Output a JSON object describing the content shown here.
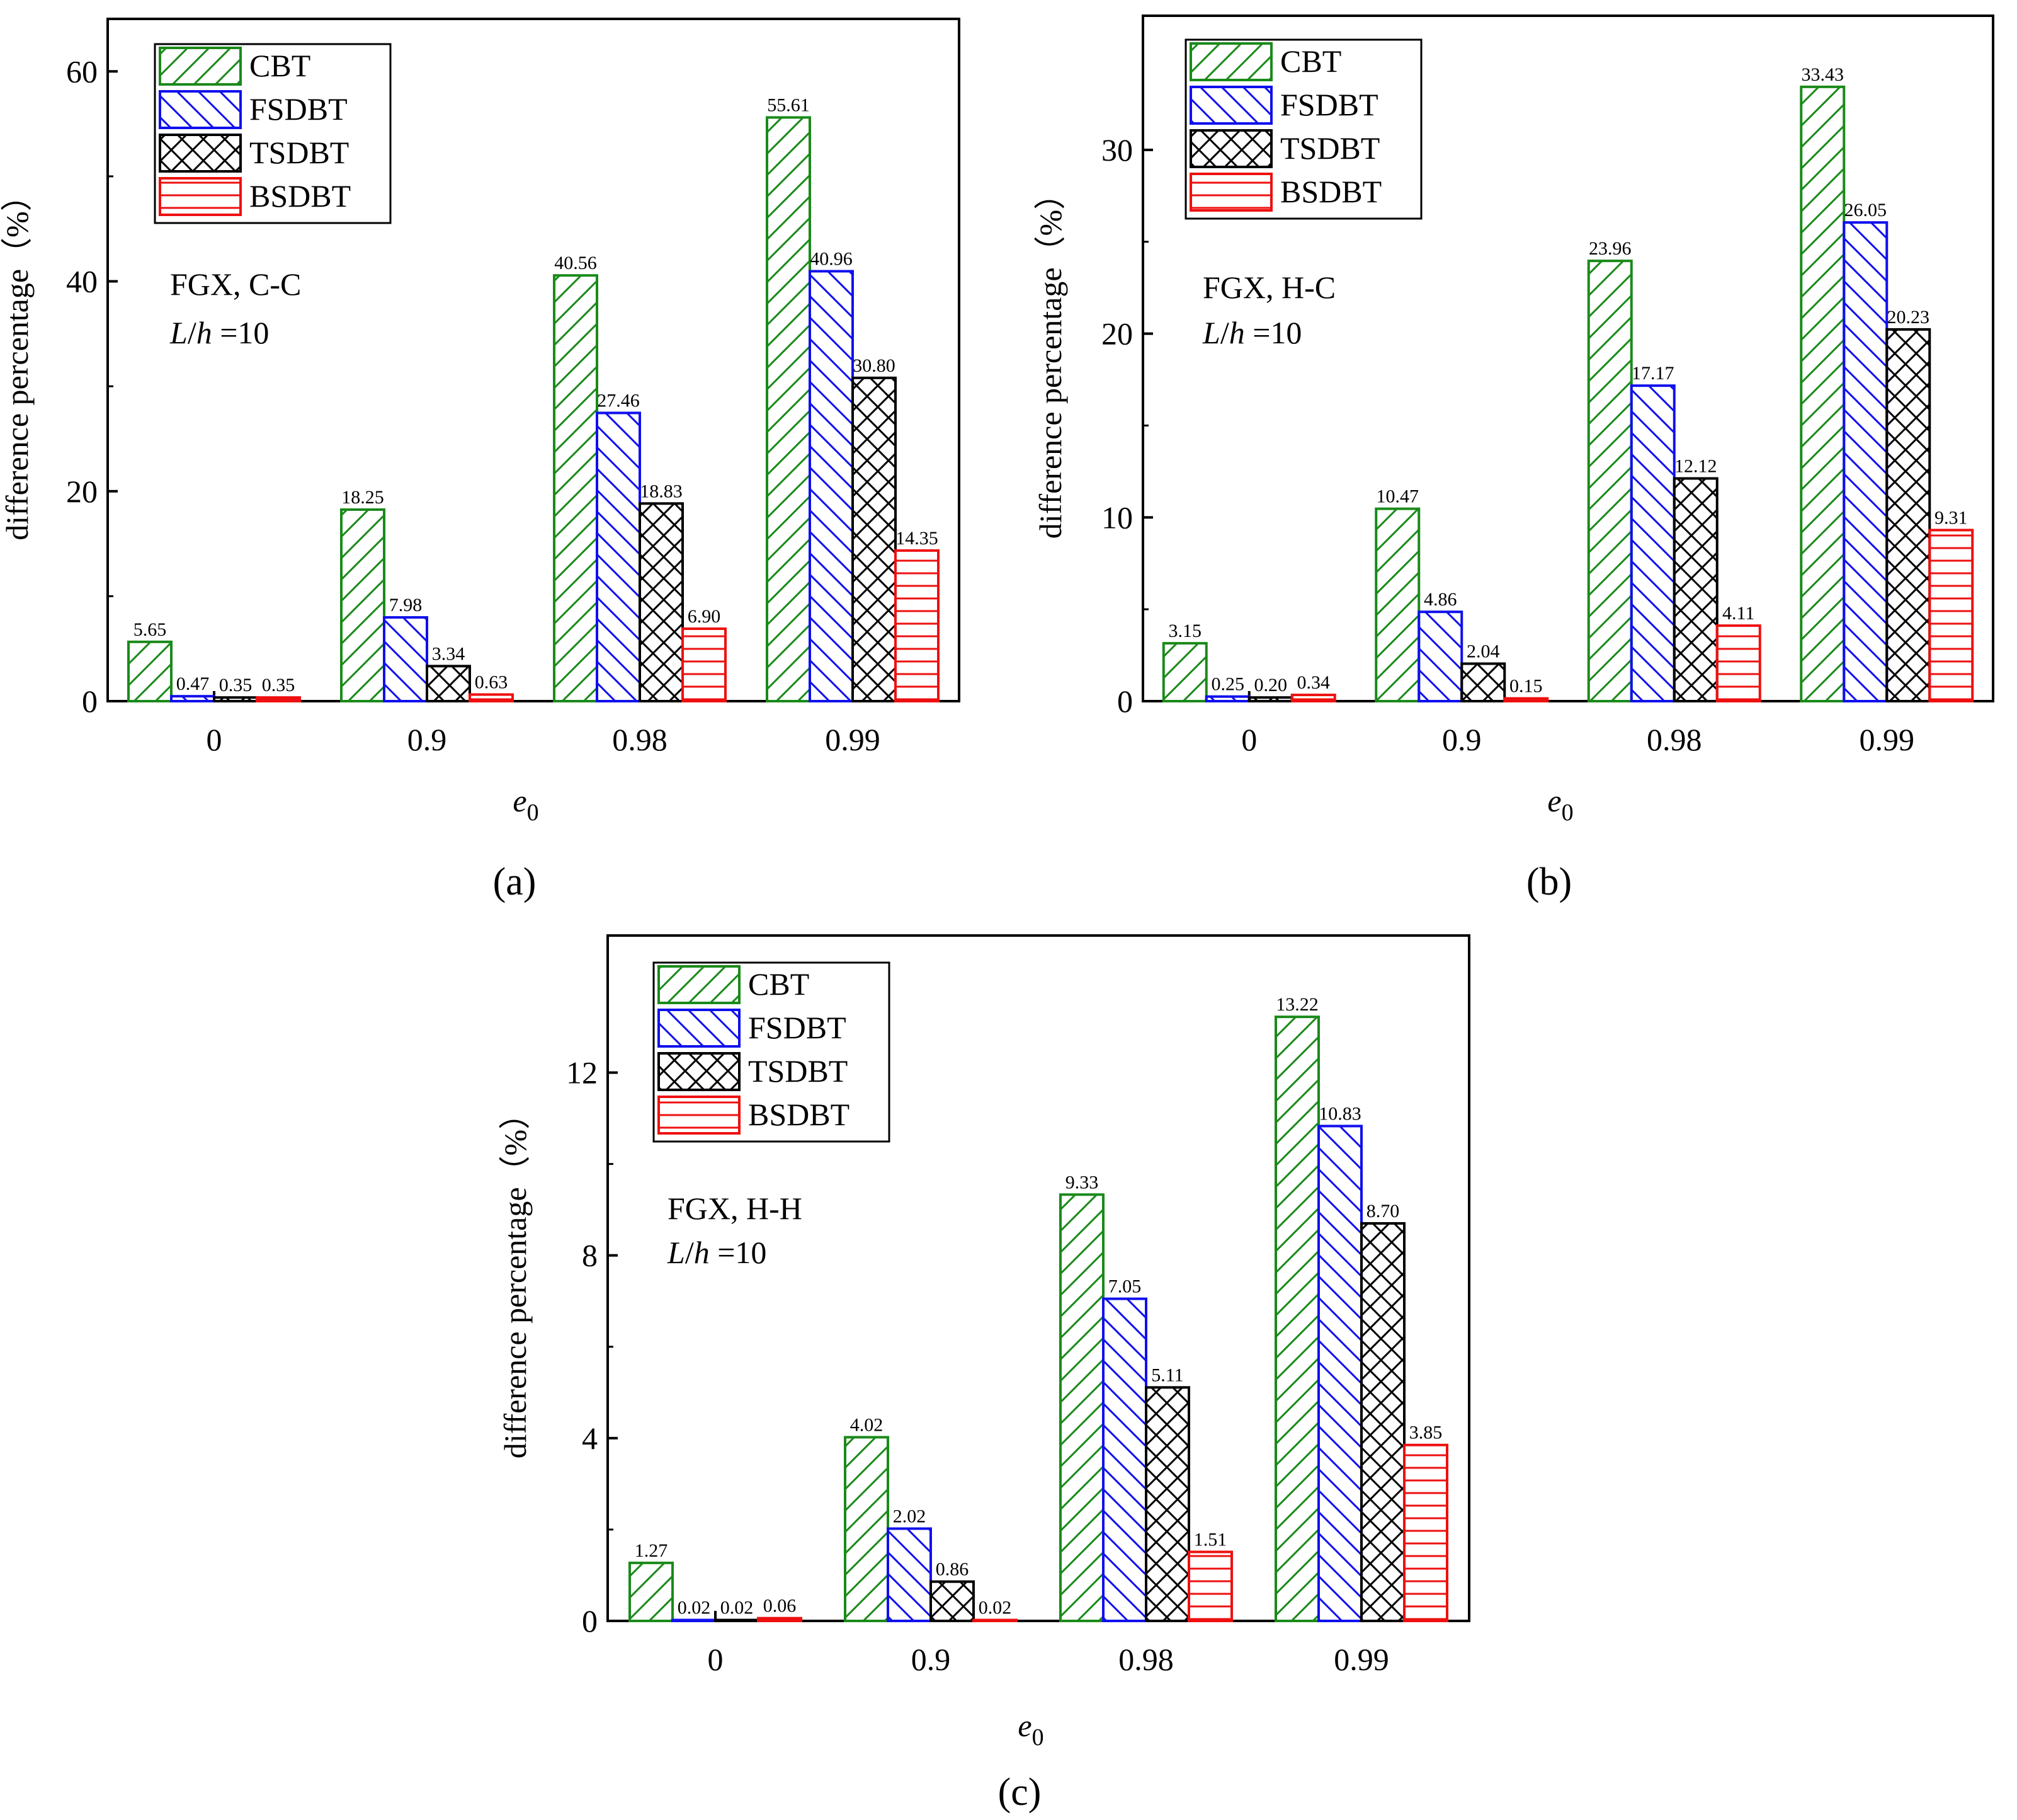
{
  "colors": {
    "CBT": "#1a8a1a",
    "FSDBT": "#1010ee",
    "TSDBT": "#000000",
    "BSDBT": "#ee1010"
  },
  "legend": [
    "CBT",
    "FSDBT",
    "TSDBT",
    "BSDBT"
  ],
  "chart_data": [
    {
      "id": "a",
      "type": "bar",
      "panel_label": "(a)",
      "annotation_line1": "FGX, C-C",
      "annotation_line2_italic1": "L",
      "annotation_line2_slash": "/",
      "annotation_line2_italic2": "h",
      "annotation_line2_rest": " =10",
      "ylabel": "difference percentage（%）",
      "xlabel_main": "e",
      "xlabel_sub": "0",
      "categories": [
        "0",
        "0.9",
        "0.98",
        "0.99"
      ],
      "ylim": [
        0,
        65
      ],
      "yticks": [
        0,
        20,
        40,
        60
      ],
      "series": [
        {
          "name": "CBT",
          "values": [
            5.65,
            18.25,
            40.56,
            55.61
          ],
          "labels": [
            "5.65",
            "18.25",
            "40.56",
            "55.61"
          ]
        },
        {
          "name": "FSDBT",
          "values": [
            0.47,
            7.98,
            27.46,
            40.96
          ],
          "labels": [
            "0.47",
            "7.98",
            "27.46",
            "40.96"
          ]
        },
        {
          "name": "TSDBT",
          "values": [
            0.35,
            3.34,
            18.83,
            30.8
          ],
          "labels": [
            "0.35",
            "3.34",
            "18.83",
            "30.80"
          ]
        },
        {
          "name": "BSDBT",
          "values": [
            0.35,
            0.63,
            6.9,
            14.35
          ],
          "labels": [
            "0.35",
            "0.63",
            "6.90",
            "14.35"
          ]
        }
      ]
    },
    {
      "id": "b",
      "type": "bar",
      "panel_label": "(b)",
      "annotation_line1": "FGX, H-C",
      "annotation_line2_italic1": "L",
      "annotation_line2_slash": "/",
      "annotation_line2_italic2": "h",
      "annotation_line2_rest": " =10",
      "ylabel": "difference percentage（%）",
      "xlabel_main": "e",
      "xlabel_sub": "0",
      "categories": [
        "0",
        "0.9",
        "0.98",
        "0.99"
      ],
      "ylim": [
        0,
        37.3
      ],
      "yticks": [
        0,
        10,
        20,
        30
      ],
      "series": [
        {
          "name": "CBT",
          "values": [
            3.15,
            10.47,
            23.96,
            33.43
          ],
          "labels": [
            "3.15",
            "10.47",
            "23.96",
            "33.43"
          ]
        },
        {
          "name": "FSDBT",
          "values": [
            0.25,
            4.86,
            17.17,
            26.05
          ],
          "labels": [
            "0.25",
            "4.86",
            "17.17",
            "26.05"
          ]
        },
        {
          "name": "TSDBT",
          "values": [
            0.2,
            2.04,
            12.12,
            20.23
          ],
          "labels": [
            "0.20",
            "2.04",
            "12.12",
            "20.23"
          ]
        },
        {
          "name": "BSDBT",
          "values": [
            0.34,
            0.15,
            4.11,
            9.31
          ],
          "labels": [
            "0.34",
            "0.15",
            "4.11",
            "9.31"
          ]
        }
      ]
    },
    {
      "id": "c",
      "type": "bar",
      "panel_label": "(c)",
      "annotation_line1": "FGX, H-H",
      "annotation_line2_italic1": "L",
      "annotation_line2_slash": "/",
      "annotation_line2_italic2": "h",
      "annotation_line2_rest": " =10",
      "ylabel": "difference percentage（%）",
      "xlabel_main": "e",
      "xlabel_sub": "0",
      "categories": [
        "0",
        "0.9",
        "0.98",
        "0.99"
      ],
      "ylim": [
        0,
        15
      ],
      "yticks": [
        0,
        4,
        8,
        12
      ],
      "series": [
        {
          "name": "CBT",
          "values": [
            1.27,
            4.02,
            9.33,
            13.22
          ],
          "labels": [
            "1.27",
            "4.02",
            "9.33",
            "13.22"
          ]
        },
        {
          "name": "FSDBT",
          "values": [
            0.02,
            2.02,
            7.05,
            10.83
          ],
          "labels": [
            "0.02",
            "2.02",
            "7.05",
            "10.83"
          ]
        },
        {
          "name": "TSDBT",
          "values": [
            0.02,
            0.86,
            5.11,
            8.7
          ],
          "labels": [
            "0.02",
            "0.86",
            "5.11",
            "8.70"
          ]
        },
        {
          "name": "BSDBT",
          "values": [
            0.06,
            0.02,
            1.51,
            3.85
          ],
          "labels": [
            "0.06",
            "0.02",
            "1.51",
            "3.85"
          ]
        }
      ]
    }
  ]
}
